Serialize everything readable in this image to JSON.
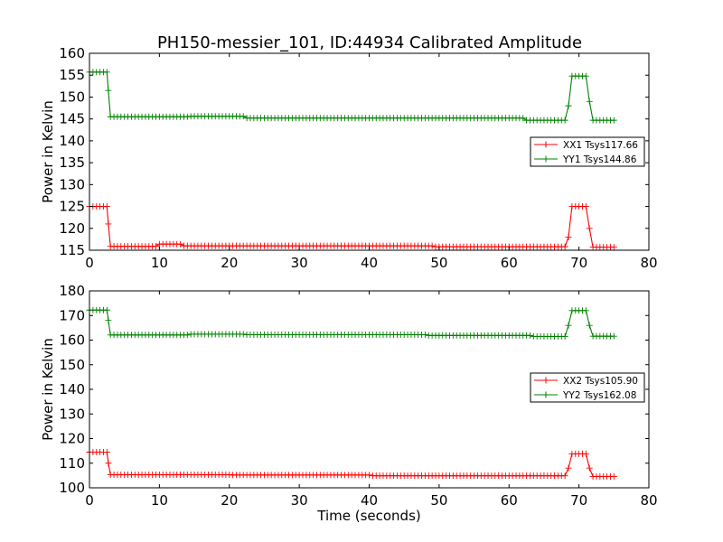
{
  "chart_data": [
    {
      "type": "line",
      "title": "PH150-messier_101, ID:44934 Calibrated Amplitude",
      "xlabel": "",
      "ylabel": "Power in Kelvin",
      "xlim": [
        0,
        80
      ],
      "ylim": [
        115,
        160
      ],
      "xticks": [
        0,
        10,
        20,
        30,
        40,
        50,
        60,
        70,
        80
      ],
      "yticks": [
        115,
        120,
        125,
        130,
        135,
        140,
        145,
        150,
        155,
        160
      ],
      "grid": false,
      "legend_position": "right",
      "series": [
        {
          "name": "XX1 Tsys117.66",
          "color": "#ff0000",
          "marker": "plus",
          "sample_step": 0.5,
          "x_start": 0,
          "x_end": 75,
          "segments": [
            {
              "x": [
                0,
                2.5
              ],
              "y": 125
            },
            {
              "x": [
                2.7
              ],
              "y": 121
            },
            {
              "x": [
                3,
                9.5
              ],
              "y": 115.9
            },
            {
              "x": [
                10,
                13
              ],
              "y": 116.4
            },
            {
              "x": [
                13.5,
                49
              ],
              "y": 116.0
            },
            {
              "x": [
                49.5,
                68
              ],
              "y": 115.8
            },
            {
              "x": [
                68.5
              ],
              "y": 118
            },
            {
              "x": [
                69,
                71
              ],
              "y": 125
            },
            {
              "x": [
                71.5
              ],
              "y": 120
            },
            {
              "x": [
                72,
                75
              ],
              "y": 115.7
            }
          ]
        },
        {
          "name": "YY1 Tsys144.86",
          "color": "#008000",
          "marker": "plus",
          "sample_step": 0.5,
          "x_start": 0,
          "x_end": 75,
          "segments": [
            {
              "x": [
                0,
                2.5
              ],
              "y": 155.7
            },
            {
              "x": [
                2.7
              ],
              "y": 151.5
            },
            {
              "x": [
                3,
                14
              ],
              "y": 145.5
            },
            {
              "x": [
                14.5,
                22
              ],
              "y": 145.6
            },
            {
              "x": [
                22.5,
                62
              ],
              "y": 145.2
            },
            {
              "x": [
                62.5,
                68
              ],
              "y": 144.7
            },
            {
              "x": [
                68.5
              ],
              "y": 148
            },
            {
              "x": [
                69,
                71
              ],
              "y": 154.8
            },
            {
              "x": [
                71.5
              ],
              "y": 149
            },
            {
              "x": [
                72,
                75
              ],
              "y": 144.7
            }
          ]
        }
      ]
    },
    {
      "type": "line",
      "title": "",
      "xlabel": "Time (seconds)",
      "ylabel": "Power in Kelvin",
      "xlim": [
        0,
        80
      ],
      "ylim": [
        100,
        180
      ],
      "xticks": [
        0,
        10,
        20,
        30,
        40,
        50,
        60,
        70,
        80
      ],
      "yticks": [
        100,
        110,
        120,
        130,
        140,
        150,
        160,
        170,
        180
      ],
      "grid": false,
      "legend_position": "right",
      "series": [
        {
          "name": "XX2 Tsys105.90",
          "color": "#ff0000",
          "marker": "plus",
          "sample_step": 0.5,
          "x_start": 0,
          "x_end": 75,
          "segments": [
            {
              "x": [
                0,
                2.5
              ],
              "y": 114.5
            },
            {
              "x": [
                2.7
              ],
              "y": 110
            },
            {
              "x": [
                3,
                20
              ],
              "y": 105.3
            },
            {
              "x": [
                20.5,
                40
              ],
              "y": 105.2
            },
            {
              "x": [
                40.5,
                68
              ],
              "y": 104.9
            },
            {
              "x": [
                68.5
              ],
              "y": 108
            },
            {
              "x": [
                69,
                71
              ],
              "y": 113.8
            },
            {
              "x": [
                71.5
              ],
              "y": 108
            },
            {
              "x": [
                72,
                75
              ],
              "y": 104.6
            }
          ]
        },
        {
          "name": "YY2 Tsys162.08",
          "color": "#008000",
          "marker": "plus",
          "sample_step": 0.5,
          "x_start": 0,
          "x_end": 75,
          "segments": [
            {
              "x": [
                0,
                2.5
              ],
              "y": 172.2
            },
            {
              "x": [
                2.7
              ],
              "y": 168
            },
            {
              "x": [
                3,
                14
              ],
              "y": 162.1
            },
            {
              "x": [
                14.5,
                22
              ],
              "y": 162.4
            },
            {
              "x": [
                22.5,
                48
              ],
              "y": 162.2
            },
            {
              "x": [
                48.5,
                63
              ],
              "y": 161.9
            },
            {
              "x": [
                63.5,
                68
              ],
              "y": 161.5
            },
            {
              "x": [
                68.5
              ],
              "y": 166
            },
            {
              "x": [
                69,
                71
              ],
              "y": 172
            },
            {
              "x": [
                71.5
              ],
              "y": 166
            },
            {
              "x": [
                72,
                75
              ],
              "y": 161.6
            }
          ]
        }
      ]
    }
  ]
}
